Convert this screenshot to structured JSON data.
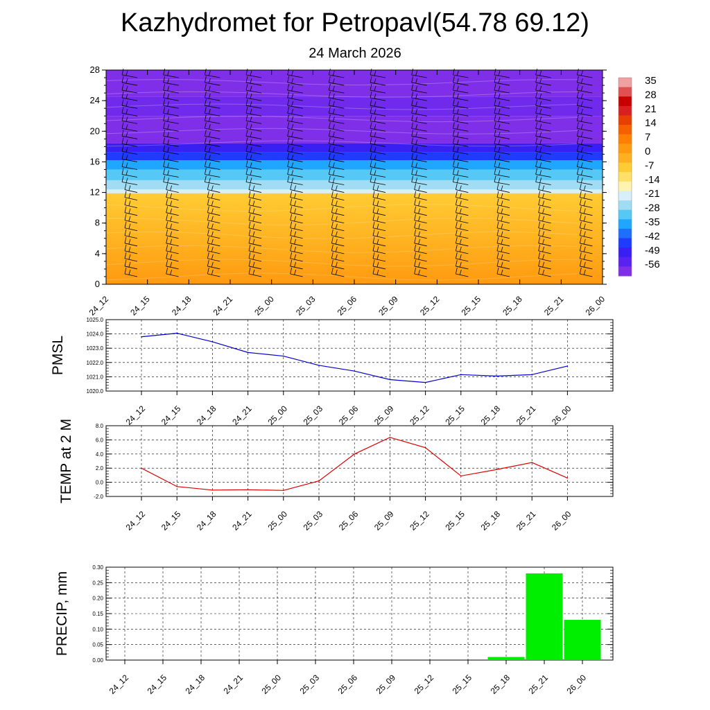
{
  "header": {
    "title": "Kazhydromet for Petropavl(54.78 69.12)",
    "date": "24 March 2026"
  },
  "colors": {
    "pmsl_line": "#0000cc",
    "temp_line": "#dd0000",
    "precip_bar": "#00ee00",
    "grid": "#000000",
    "colorbar": [
      "#7f2fe8",
      "#5a22f0",
      "#3a1ff2",
      "#1f3bff",
      "#1f6fff",
      "#1fa6ff",
      "#55c8f5",
      "#a0ddf5",
      "#d8eef8",
      "#fff3b0",
      "#ffe066",
      "#ffcc33",
      "#ffb020",
      "#ff9a10",
      "#ff8000",
      "#f56000",
      "#e84000",
      "#d82020",
      "#c80000",
      "#e05050",
      "#f0a0a0"
    ]
  },
  "chart_data": [
    {
      "type": "heatmap",
      "name": "upper-air-temperature",
      "title": "",
      "x": [
        "24_12",
        "24_15",
        "24_18",
        "24_21",
        "25_00",
        "25_03",
        "25_06",
        "25_09",
        "25_12",
        "25_15",
        "25_18",
        "25_21",
        "26_00"
      ],
      "yticks": [
        0,
        4,
        8,
        12,
        16,
        20,
        24,
        28
      ],
      "ylim": [
        0,
        28
      ],
      "colorbar_labels": [
        "35",
        "28",
        "21",
        "14",
        "7",
        "0",
        "-7",
        "-14",
        "-21",
        "-28",
        "-35",
        "-42",
        "-49",
        "-56"
      ],
      "bands": [
        {
          "from": 0,
          "to": 11.9,
          "color": "#ff9a10"
        },
        {
          "from": 11.9,
          "to": 12.4,
          "color": "#d8eef8"
        },
        {
          "from": 12.4,
          "to": 13.6,
          "color": "#a0ddf5"
        },
        {
          "from": 13.6,
          "to": 15.0,
          "color": "#55c8f5"
        },
        {
          "from": 15.0,
          "to": 16.2,
          "color": "#1fa6ff"
        },
        {
          "from": 16.2,
          "to": 17.3,
          "color": "#1f3bff"
        },
        {
          "from": 17.3,
          "to": 18.4,
          "color": "#3a1ff2"
        },
        {
          "from": 18.4,
          "to": 22.0,
          "color": "#7f2fe8"
        },
        {
          "from": 22.0,
          "to": 24.5,
          "color": "#6f2aec"
        },
        {
          "from": 24.5,
          "to": 28.0,
          "color": "#7f2fe8"
        }
      ],
      "wind_barbs": true
    },
    {
      "type": "line",
      "name": "pmsl",
      "ylabel": "PMSL",
      "categories": [
        "24_12",
        "24_15",
        "24_18",
        "24_21",
        "25_00",
        "25_03",
        "25_06",
        "25_09",
        "25_12",
        "25_15",
        "25_18",
        "25_21",
        "26_00"
      ],
      "values": [
        1023.8,
        1024.05,
        1023.45,
        1022.7,
        1022.45,
        1021.8,
        1021.4,
        1020.8,
        1020.6,
        1021.15,
        1021.05,
        1021.15,
        1021.75
      ],
      "ylim": [
        1020.0,
        1025.0
      ],
      "yticks": [
        "1020.0",
        "1021.0",
        "1022.0",
        "1023.0",
        "1024.0",
        "1025.0"
      ],
      "grid": true
    },
    {
      "type": "line",
      "name": "temp-2m",
      "ylabel": "TEMP at 2 M",
      "categories": [
        "24_12",
        "24_15",
        "24_18",
        "24_21",
        "25_00",
        "25_03",
        "25_06",
        "25_09",
        "25_12",
        "25_15",
        "25_18",
        "25_21",
        "26_00"
      ],
      "values": [
        2.0,
        -0.6,
        -1.1,
        -1.05,
        -1.15,
        0.2,
        4.0,
        6.35,
        4.9,
        0.9,
        1.8,
        2.8,
        0.6
      ],
      "ylim": [
        -2.0,
        8.0
      ],
      "yticks": [
        "-2.0",
        "0.0",
        "2.0",
        "4.0",
        "6.0",
        "8.0"
      ],
      "grid": true
    },
    {
      "type": "bar",
      "name": "precip",
      "ylabel": "PRECIP, mm",
      "categories": [
        "24_12",
        "24_15",
        "24_18",
        "24_21",
        "25_00",
        "25_03",
        "25_06",
        "25_09",
        "25_12",
        "25_15",
        "25_18",
        "25_21",
        "26_00"
      ],
      "values": [
        0,
        0,
        0,
        0,
        0,
        0,
        0,
        0,
        0,
        0,
        0.01,
        0.28,
        0.13
      ],
      "ylim": [
        0,
        0.3
      ],
      "yticks": [
        "0.00",
        "0.05",
        "0.10",
        "0.15",
        "0.20",
        "0.25",
        "0.30"
      ],
      "grid": true
    }
  ]
}
